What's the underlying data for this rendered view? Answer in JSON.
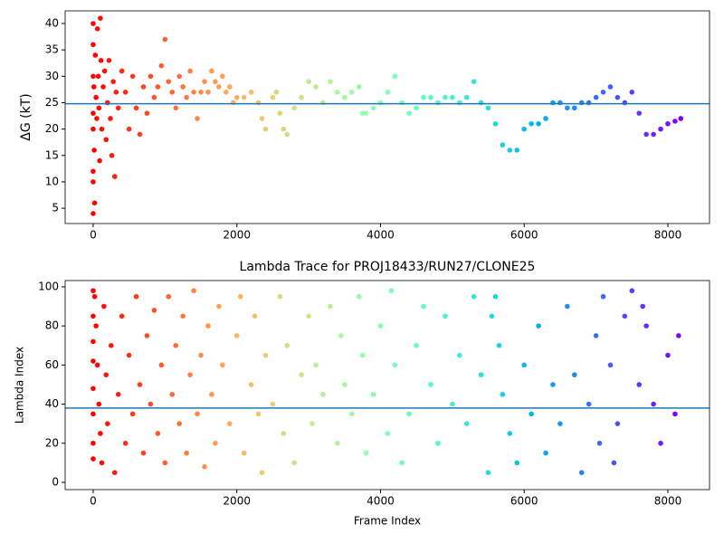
{
  "chart_data": [
    {
      "type": "scatter",
      "ylabel": "ΔG (kT)",
      "colormap": "rainbow_r",
      "x": [
        0,
        0,
        0,
        0,
        0,
        0,
        0,
        0,
        10,
        15,
        20,
        30,
        40,
        50,
        60,
        70,
        80,
        90,
        100,
        110,
        120,
        140,
        160,
        180,
        200,
        220,
        240,
        260,
        280,
        300,
        320,
        350,
        400,
        450,
        500,
        550,
        600,
        650,
        700,
        750,
        800,
        850,
        900,
        950,
        1000,
        1050,
        1100,
        1150,
        1200,
        1250,
        1300,
        1350,
        1400,
        1450,
        1500,
        1550,
        1600,
        1650,
        1700,
        1750,
        1800,
        1850,
        1900,
        1950,
        2000,
        2100,
        2200,
        2300,
        2350,
        2400,
        2500,
        2550,
        2600,
        2650,
        2700,
        2800,
        2900,
        3000,
        3100,
        3200,
        3300,
        3400,
        3500,
        3600,
        3700,
        3750,
        3800,
        3900,
        4000,
        4100,
        4200,
        4300,
        4400,
        4500,
        4600,
        4700,
        4800,
        4900,
        5000,
        5100,
        5200,
        5300,
        5400,
        5500,
        5600,
        5700,
        5800,
        5900,
        6000,
        6100,
        6200,
        6300,
        6400,
        6500,
        6600,
        6700,
        6800,
        6900,
        7000,
        7100,
        7200,
        7300,
        7400,
        7500,
        7600,
        7700,
        7800,
        7900,
        8000,
        8100,
        8180
      ],
      "values": [
        40,
        36,
        30,
        23,
        20,
        12,
        10,
        4,
        28,
        16,
        6,
        34,
        26,
        22,
        39,
        30,
        24,
        14,
        41,
        33,
        20,
        28,
        31,
        18,
        25,
        33,
        22,
        15,
        29,
        11,
        27,
        24,
        31,
        27,
        20,
        30,
        24,
        19,
        28,
        23,
        30,
        26,
        28,
        32,
        37,
        29,
        27,
        24,
        30,
        28,
        26,
        31,
        27,
        22,
        27,
        29,
        27,
        31,
        29,
        28,
        30,
        27,
        28,
        25,
        26,
        26,
        27,
        25,
        22,
        20,
        26,
        27,
        23,
        20,
        19,
        24,
        26,
        29,
        28,
        25,
        29,
        27,
        26,
        27,
        28,
        23,
        23,
        24,
        25,
        27,
        30,
        25,
        23,
        24,
        26,
        26,
        25,
        26,
        26,
        25,
        26,
        29,
        25,
        24,
        21,
        17,
        16,
        16,
        20,
        21,
        21,
        22,
        25,
        25,
        24,
        24,
        25,
        25,
        26,
        27,
        28,
        26,
        25,
        27,
        23,
        19,
        19,
        20,
        21,
        21.5,
        22
      ],
      "hline": 24.8,
      "hline_color": "#1f77b4",
      "xlim": [
        -390,
        8580
      ],
      "xticks": [
        0,
        2000,
        4000,
        6000,
        8000
      ],
      "ylim": [
        2.1,
        42.4
      ],
      "yticks": [
        5,
        10,
        15,
        20,
        25,
        30,
        35,
        40
      ]
    },
    {
      "type": "scatter",
      "title": "Lambda Trace for PROJ18433/RUN27/CLONE25",
      "xlabel": "Frame Index",
      "ylabel": "Lambda Index",
      "colormap": "rainbow_r",
      "x": [
        0,
        0,
        0,
        0,
        0,
        0,
        0,
        0,
        20,
        40,
        60,
        80,
        100,
        120,
        150,
        180,
        200,
        250,
        300,
        350,
        400,
        450,
        500,
        550,
        600,
        650,
        700,
        750,
        800,
        850,
        900,
        950,
        1000,
        1050,
        1100,
        1150,
        1200,
        1250,
        1300,
        1350,
        1400,
        1450,
        1500,
        1550,
        1600,
        1650,
        1700,
        1750,
        1800,
        1900,
        2000,
        2050,
        2100,
        2200,
        2250,
        2300,
        2350,
        2400,
        2500,
        2600,
        2650,
        2700,
        2800,
        2900,
        3000,
        3050,
        3100,
        3200,
        3300,
        3400,
        3450,
        3500,
        3600,
        3700,
        3750,
        3800,
        3900,
        4000,
        4100,
        4150,
        4200,
        4300,
        4400,
        4500,
        4600,
        4700,
        4800,
        4900,
        5000,
        5100,
        5200,
        5300,
        5400,
        5500,
        5550,
        5600,
        5650,
        5700,
        5800,
        5900,
        6000,
        6100,
        6200,
        6300,
        6400,
        6500,
        6600,
        6700,
        6800,
        6900,
        7000,
        7050,
        7100,
        7200,
        7250,
        7300,
        7400,
        7500,
        7600,
        7650,
        7700,
        7800,
        7900,
        8000,
        8100,
        8150
      ],
      "values": [
        98,
        85,
        72,
        62,
        48,
        35,
        20,
        12,
        95,
        80,
        60,
        40,
        25,
        10,
        90,
        55,
        30,
        70,
        5,
        45,
        85,
        20,
        65,
        35,
        95,
        50,
        15,
        75,
        40,
        88,
        25,
        60,
        10,
        95,
        45,
        70,
        30,
        85,
        15,
        55,
        98,
        35,
        65,
        8,
        80,
        45,
        20,
        90,
        60,
        30,
        75,
        95,
        15,
        50,
        85,
        35,
        5,
        65,
        40,
        95,
        25,
        70,
        10,
        55,
        85,
        30,
        60,
        45,
        90,
        20,
        75,
        50,
        35,
        95,
        65,
        15,
        45,
        80,
        25,
        98,
        60,
        10,
        35,
        70,
        90,
        50,
        20,
        85,
        40,
        65,
        30,
        95,
        55,
        5,
        85,
        95,
        70,
        45,
        25,
        10,
        60,
        35,
        80,
        15,
        50,
        30,
        90,
        55,
        5,
        40,
        75,
        20,
        95,
        60,
        10,
        30,
        85,
        98,
        50,
        90,
        80,
        40,
        20,
        65,
        35,
        75
      ],
      "hline": 38,
      "hline_color": "#1f77b4",
      "xlim": [
        -390,
        8580
      ],
      "xticks": [
        0,
        2000,
        4000,
        6000,
        8000
      ],
      "ylim": [
        -3.7,
        103.2
      ],
      "yticks": [
        0,
        20,
        40,
        60,
        80,
        100
      ]
    }
  ]
}
